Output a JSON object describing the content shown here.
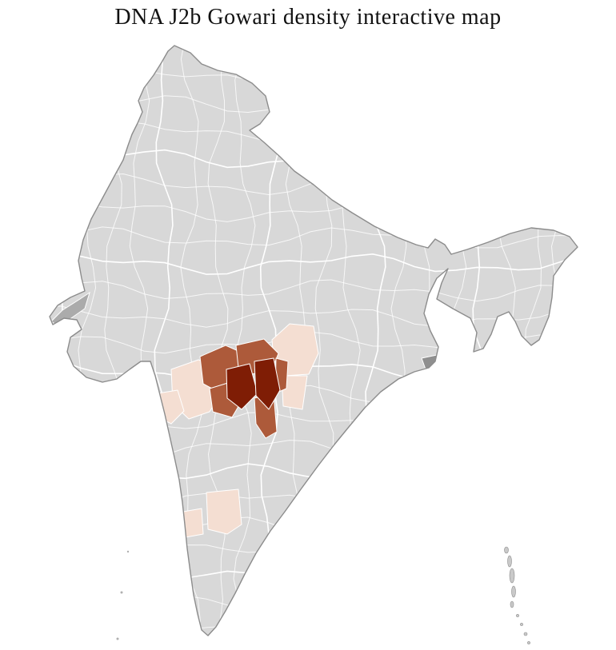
{
  "title": "DNA J2b Gowari density interactive map",
  "map": {
    "country": "India",
    "type": "choropleth",
    "colors": {
      "background": "#ffffff",
      "title_color": "#111111",
      "base_fill": "#d8d8d8",
      "district_border": "#ffffff",
      "outline": "#8c8c8c",
      "density_high": "#7f1d05",
      "density_medium": "#ad5a3a",
      "density_low": "#f4ded2",
      "gray_highlight": "#8f8f8f",
      "island_fill": "#c9c9c9"
    },
    "density_levels": [
      {
        "level": "high",
        "color": "#7f1d05"
      },
      {
        "level": "medium",
        "color": "#ad5a3a"
      },
      {
        "level": "low",
        "color": "#f4ded2"
      }
    ]
  }
}
